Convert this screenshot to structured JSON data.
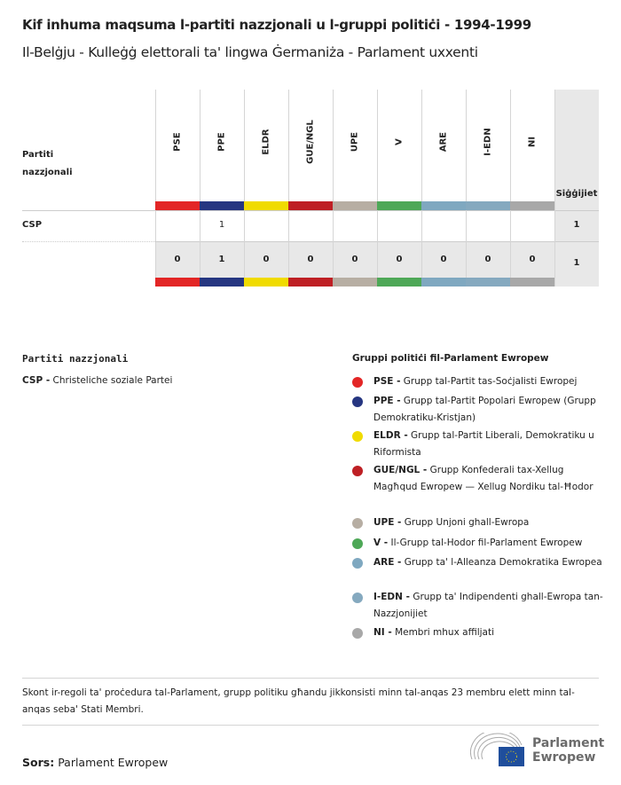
{
  "title": "Kif inhuma maqsuma l-partiti nazzjonali u l-gruppi politiċi - 1994-1999",
  "subtitle": "Il-Belġju - Kulleġġ elettorali ta' lingwa Ġermaniża - Parlament uxxenti",
  "table": {
    "row_header": "Partiti nazzjonali",
    "total_header": "Siġġijiet",
    "groups": [
      {
        "code": "PSE",
        "color": "#e32626"
      },
      {
        "code": "PPE",
        "color": "#263681"
      },
      {
        "code": "ELDR",
        "color": "#f0db00"
      },
      {
        "code": "GUE/NGL",
        "color": "#be1f24"
      },
      {
        "code": "UPE",
        "color": "#b7aea3"
      },
      {
        "code": "V",
        "color": "#4ea857"
      },
      {
        "code": "ARE",
        "color": "#7fa8c0"
      },
      {
        "code": "I-EDN",
        "color": "#85a9bf"
      },
      {
        "code": "NI",
        "color": "#a8a8a8"
      }
    ],
    "rows": [
      {
        "party": "CSP",
        "values": [
          "",
          "1",
          "",
          "",
          "",
          "",
          "",
          "",
          ""
        ],
        "total": "1"
      }
    ],
    "totals": [
      "0",
      "1",
      "0",
      "0",
      "0",
      "0",
      "0",
      "0",
      "0"
    ],
    "grand_total": "1"
  },
  "parties_legend": {
    "title": "Partiti nazzjonali",
    "items": [
      {
        "code": "CSP -",
        "name": "Christeliche soziale Partei"
      }
    ]
  },
  "groups_legend": {
    "title": "Gruppi politiċi fil-Parlament Ewropew",
    "items": [
      {
        "code": "PSE -",
        "name": "Grupp tal-Partit tas-Soċjalisti Ewropej",
        "color": "#e32626"
      },
      {
        "code": "PPE -",
        "name": "Grupp tal-Partit Popolari Ewropew (Grupp Demokratiku-Kristjan)",
        "color": "#263681"
      },
      {
        "code": "ELDR -",
        "name": "Grupp tal-Partit Liberali, Demokratiku u Riformista",
        "color": "#f0db00"
      },
      {
        "code": "GUE/NGL -",
        "name": "Grupp Konfederali tax-Xellug Magħqud Ewropew — Xellug Nordiku tal-Ħodor",
        "color": "#be1f24"
      },
      {
        "code": "UPE -",
        "name": "Grupp Unjoni ghall-Ewropa",
        "color": "#b7aea3"
      },
      {
        "code": "V -",
        "name": "Il-Grupp tal-Hodor fil-Parlament Ewropew",
        "color": "#4ea857"
      },
      {
        "code": "ARE -",
        "name": "Grupp ta' l-Alleanza Demokratika Ewropea",
        "color": "#7fa8c0"
      },
      {
        "code": "I-EDN -",
        "name": "Grupp ta' Indipendenti ghall-Ewropa tan-Nazzjonijiet",
        "color": "#85a9bf"
      },
      {
        "code": "NI -",
        "name": "Membri mhux affiljati",
        "color": "#a8a8a8"
      }
    ]
  },
  "note": "Skont ir-regoli ta' proċedura tal-Parlament, grupp politiku għandu jikkonsisti minn tal-anqas 23 membru elett minn tal-anqas seba' Stati Membri.",
  "source": {
    "label": "Sors:",
    "value": "Parlament Ewropew"
  },
  "logo": {
    "text": "Parlament Ewropew"
  }
}
